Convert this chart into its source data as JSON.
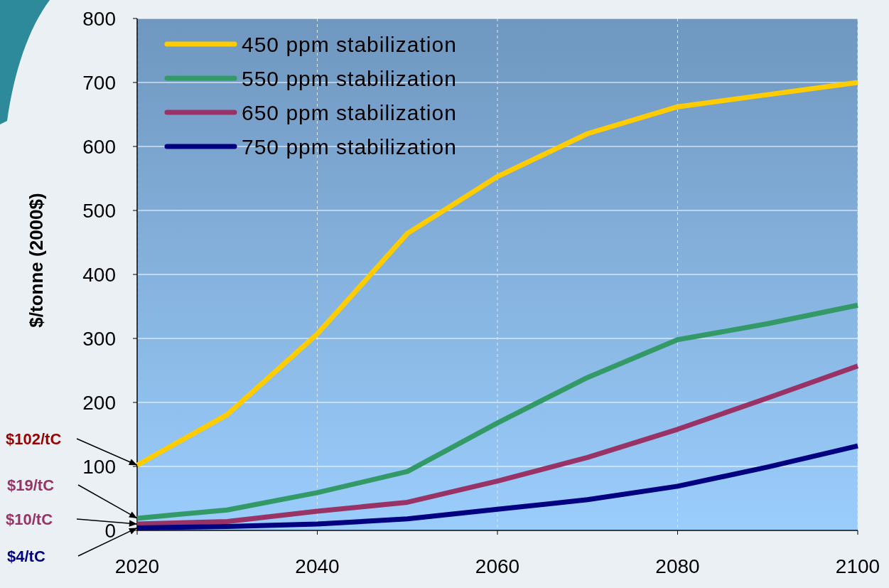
{
  "chart_data": {
    "type": "line",
    "ylabel": "$/tonne (2000$)",
    "x": [
      2020,
      2030,
      2040,
      2050,
      2060,
      2070,
      2080,
      2090,
      2100
    ],
    "series": [
      {
        "name": "450 ppm stabilization",
        "color": "#ffcc00",
        "values": [
          102,
          181,
          307,
          464,
          553,
          620,
          662,
          681,
          700
        ]
      },
      {
        "name": "550 ppm stabilization",
        "color": "#339966",
        "values": [
          19,
          32,
          59,
          92,
          168,
          239,
          298,
          323,
          352
        ]
      },
      {
        "name": "650 ppm stabilization",
        "color": "#993366",
        "values": [
          10,
          14,
          30,
          44,
          77,
          114,
          158,
          207,
          257
        ]
      },
      {
        "name": "750 ppm stabilization",
        "color": "#000080",
        "values": [
          4,
          6,
          10,
          18,
          33,
          48,
          69,
          99,
          132
        ]
      }
    ],
    "xlim": [
      2020,
      2100
    ],
    "xticks": [
      2020,
      2040,
      2060,
      2080,
      2100
    ],
    "ylim": [
      0,
      800
    ],
    "yticks": [
      0,
      100,
      200,
      300,
      400,
      500,
      600,
      700,
      800
    ],
    "grid": true,
    "legend": "top left",
    "line_style": "solid",
    "annotations": [
      "$102/tC",
      "$19/tC",
      "$10/tC",
      "$4/tC"
    ]
  }
}
